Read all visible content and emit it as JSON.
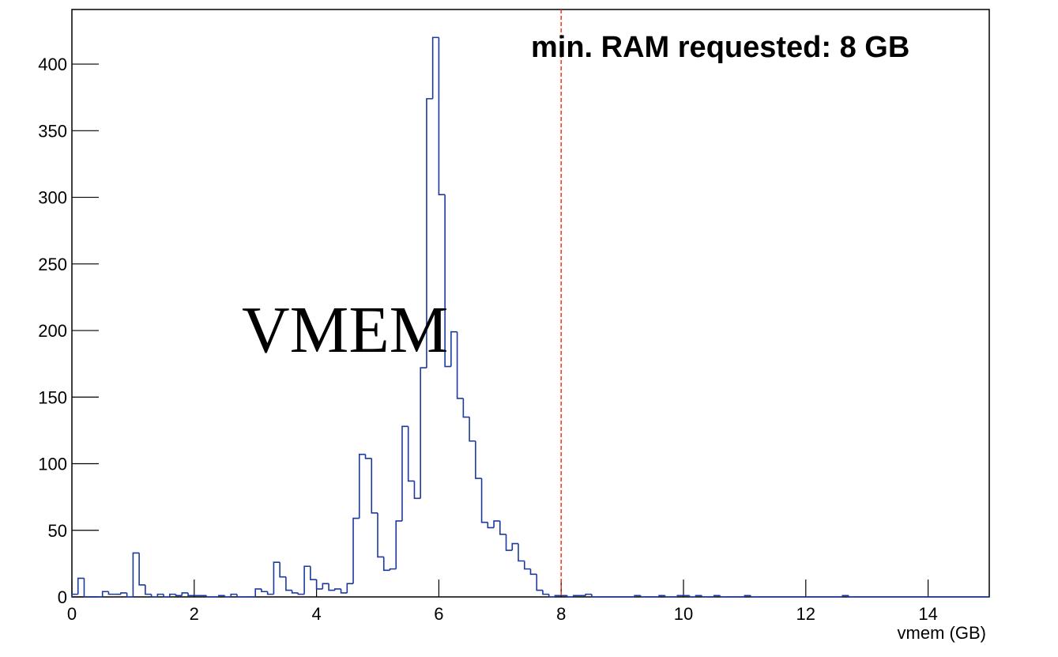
{
  "chart_data": {
    "type": "histogram",
    "x_label": "vmem (GB)",
    "overlay_text": "VMEM",
    "annotation": "min. RAM requested: 8 GB",
    "vline": 8,
    "vline_color": "#ff3010",
    "color": "#1c3a9e",
    "xlim": [
      0,
      15
    ],
    "ylim": [
      0,
      441
    ],
    "xticks": [
      0,
      2,
      4,
      6,
      8,
      10,
      12,
      14
    ],
    "yticks": [
      0,
      50,
      100,
      150,
      200,
      250,
      300,
      350,
      400
    ],
    "bins": [
      0,
      0.1,
      0.2,
      0.3,
      0.4,
      0.5,
      0.6,
      0.7,
      0.8,
      0.9,
      1,
      1.1,
      1.2,
      1.3,
      1.4,
      1.5,
      1.6,
      1.7,
      1.8,
      1.9,
      2,
      2.1,
      2.2,
      2.3,
      2.4,
      2.5,
      2.6,
      2.7,
      2.8,
      2.9,
      3,
      3.1,
      3.2,
      3.3,
      3.4,
      3.5,
      3.6,
      3.7,
      3.8,
      3.9,
      4,
      4.1,
      4.2,
      4.3,
      4.4,
      4.5,
      4.6,
      4.7,
      4.8,
      4.9,
      5,
      5.1,
      5.2,
      5.3,
      5.4,
      5.5,
      5.6,
      5.7,
      5.8,
      5.9,
      6,
      6.1,
      6.2,
      6.3,
      6.4,
      6.5,
      6.6,
      6.7,
      6.8,
      6.9,
      7,
      7.1,
      7.2,
      7.3,
      7.4,
      7.5,
      7.6,
      7.7,
      7.8,
      7.9,
      8,
      8.1,
      8.2,
      8.3,
      8.4,
      8.5,
      8.6,
      8.7,
      8.8,
      8.9,
      9,
      9.1,
      9.2,
      9.3,
      9.4,
      9.5,
      9.6,
      9.7,
      9.8,
      9.9,
      10,
      10.1,
      10.2,
      10.3,
      10.4,
      10.5,
      10.6,
      10.7,
      10.8,
      10.9,
      11,
      11.1,
      11.2,
      11.3,
      11.4,
      11.5,
      11.6,
      11.7,
      11.8,
      11.9,
      12,
      12.1,
      12.2,
      12.3,
      12.4,
      12.5,
      12.6,
      12.7,
      12.8,
      12.9,
      13,
      13.1,
      13.2,
      13.3,
      13.4,
      13.5,
      13.6,
      13.7,
      13.8,
      13.9,
      14,
      14.1,
      14.2,
      14.3,
      14.4,
      14.5,
      14.6,
      14.7,
      14.8,
      14.9,
      15
    ],
    "values": [
      2,
      14,
      0,
      0,
      0,
      4,
      2,
      2,
      3,
      0,
      33,
      9,
      2,
      0,
      2,
      0,
      2,
      1,
      3,
      1,
      1,
      1,
      0,
      0,
      1,
      0,
      2,
      0,
      0,
      0,
      6,
      4,
      2,
      26,
      15,
      5,
      3,
      2,
      23,
      13,
      6,
      10,
      5,
      6,
      3,
      10,
      59,
      107,
      104,
      63,
      30,
      20,
      21,
      57,
      128,
      87,
      74,
      172,
      374,
      420,
      302,
      173,
      199,
      149,
      135,
      117,
      89,
      56,
      52,
      57,
      47,
      35,
      40,
      27,
      21,
      17,
      5,
      2,
      0,
      1,
      1,
      0,
      1,
      1,
      2,
      0,
      0,
      0,
      0,
      0,
      0,
      0,
      1,
      0,
      0,
      0,
      1,
      0,
      0,
      1,
      1,
      0,
      1,
      0,
      0,
      1,
      0,
      0,
      0,
      0,
      1,
      0,
      0,
      0,
      0,
      0,
      0,
      0,
      0,
      0,
      0,
      0,
      0,
      0,
      0,
      0,
      1,
      0,
      0,
      0,
      0,
      0,
      0,
      0,
      0,
      0,
      0,
      0,
      0,
      0,
      0,
      0,
      0,
      0,
      0,
      0,
      0,
      0,
      0,
      0
    ]
  }
}
